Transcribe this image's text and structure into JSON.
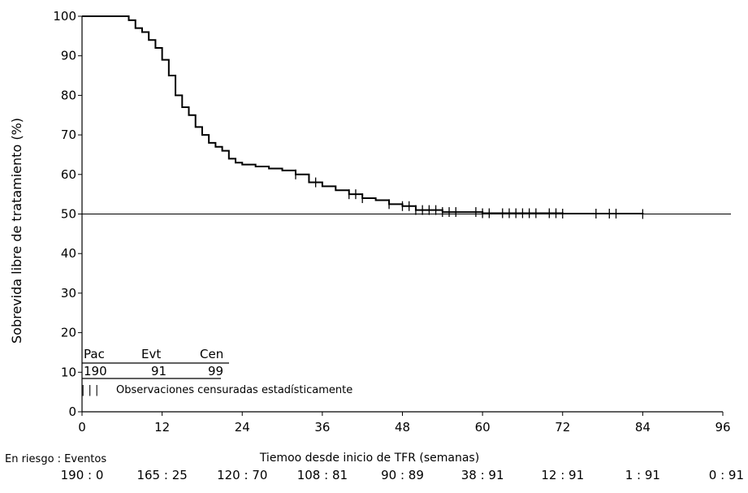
{
  "chart_data": {
    "type": "line",
    "xlabel": "Tiemoo desde inicio de TFR (semanas)",
    "ylabel": "Sobrevida libre de tratamiento (%)",
    "xlim": [
      0,
      96
    ],
    "ylim": [
      0,
      100
    ],
    "x_ticks": [
      0,
      12,
      24,
      36,
      48,
      60,
      72,
      84,
      96
    ],
    "y_ticks": [
      0,
      10,
      20,
      30,
      40,
      50,
      60,
      70,
      80,
      90,
      100
    ],
    "reference_line_y": 50,
    "grid": false,
    "series": [
      {
        "points": [
          [
            0,
            100
          ],
          [
            6,
            100
          ],
          [
            7,
            99
          ],
          [
            8,
            97
          ],
          [
            9,
            96
          ],
          [
            10,
            94
          ],
          [
            11,
            92
          ],
          [
            12,
            89
          ],
          [
            13,
            85
          ],
          [
            14,
            80
          ],
          [
            15,
            77
          ],
          [
            16,
            75
          ],
          [
            17,
            72
          ],
          [
            18,
            70
          ],
          [
            19,
            68
          ],
          [
            20,
            67
          ],
          [
            21,
            66
          ],
          [
            22,
            64
          ],
          [
            23,
            63
          ],
          [
            24,
            62.5
          ],
          [
            26,
            62
          ],
          [
            28,
            61.5
          ],
          [
            30,
            61
          ],
          [
            32,
            60
          ],
          [
            34,
            58
          ],
          [
            36,
            57
          ],
          [
            38,
            56
          ],
          [
            40,
            55
          ],
          [
            42,
            54
          ],
          [
            44,
            53.5
          ],
          [
            46,
            52.5
          ],
          [
            48,
            52
          ],
          [
            50,
            51
          ],
          [
            52,
            51
          ],
          [
            54,
            50.5
          ],
          [
            60,
            50.2
          ],
          [
            72,
            50.1
          ],
          [
            84,
            50
          ]
        ],
        "censored": [
          32,
          35,
          40,
          41,
          42,
          46,
          48,
          49,
          50,
          51,
          52,
          53,
          54,
          55,
          56,
          59,
          60,
          61,
          63,
          64,
          65,
          66,
          67,
          68,
          70,
          71,
          72,
          77,
          79,
          80,
          84
        ]
      }
    ],
    "legend": {
      "headers": [
        "Pac",
        "Evt",
        "Cen"
      ],
      "values": [
        "190",
        "91",
        "99"
      ],
      "censored_symbol": "| | |",
      "censored_note": "Observaciones censuradas estadísticamente"
    },
    "at_risk": {
      "title": "En riesgo : Eventos",
      "values": [
        "190 : 0",
        "165 : 25",
        "120 : 70",
        "108 : 81",
        "90 : 89",
        "38 : 91",
        "12 : 91",
        "1 : 91",
        "0 : 91"
      ]
    }
  }
}
